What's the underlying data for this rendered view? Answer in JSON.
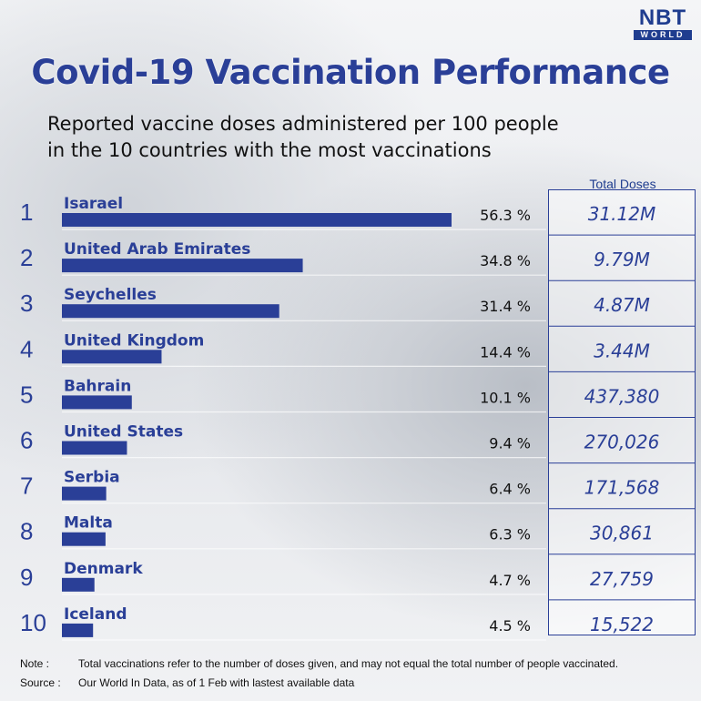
{
  "logo": {
    "main": "NBT",
    "sub": "WORLD"
  },
  "title": "Covid-19 Vaccination Performance",
  "subtitle_line1": "Reported vaccine doses administered per 100 people",
  "subtitle_line2": "in the 10 countries with the most vaccinations",
  "total_doses_header": "Total Doses",
  "colors": {
    "bar": "#2a3f97",
    "title": "#2a3f97",
    "rank": "#2a3f97",
    "total": "#2a3f97"
  },
  "chart_data": {
    "type": "bar",
    "orientation": "horizontal",
    "title": "Covid-19 Vaccination Performance",
    "categories": [
      "Isarael",
      "United Arab Emirates",
      "Seychelles",
      "United Kingdom",
      "Bahrain",
      "United States",
      "Serbia",
      "Malta",
      "Denmark",
      "Iceland"
    ],
    "ranks": [
      "1",
      "2",
      "3",
      "4",
      "5",
      "6",
      "7",
      "8",
      "9",
      "10"
    ],
    "values": [
      56.3,
      34.8,
      31.4,
      14.4,
      10.1,
      9.4,
      6.4,
      6.3,
      4.7,
      4.5
    ],
    "value_labels": [
      "56.3 %",
      "34.8 %",
      "31.4 %",
      "14.4 %",
      "10.1 %",
      "9.4 %",
      "6.4 %",
      "6.3 %",
      "4.7 %",
      "4.5 %"
    ],
    "total_doses": [
      "31.12M",
      "9.79M",
      "4.87M",
      "3.44M",
      "437,380",
      "270,026",
      "171,568",
      "30,861",
      "27,759",
      "15,522"
    ]
  },
  "note": {
    "label": "Note :",
    "text": "Total vaccinations refer to the number of doses given,  and may not equal the total number of people vaccinated."
  },
  "source": {
    "label": "Source :",
    "text": "Our World In Data, as of 1 Feb with lastest available data"
  }
}
